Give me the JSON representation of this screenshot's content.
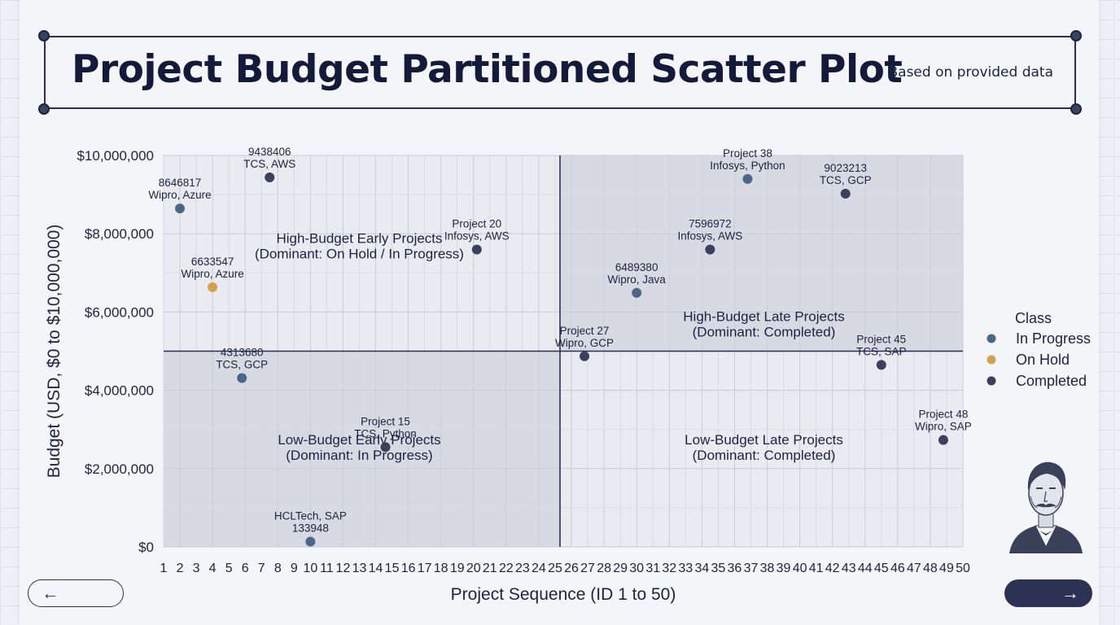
{
  "header": {
    "title": "Project Budget Partitioned Scatter Plot",
    "subtitle": "Based on provided data"
  },
  "chart_data": {
    "type": "scatter",
    "title": "Project Budget Partitioned Scatter Plot",
    "subtitle": "Based on provided data",
    "xlabel": "Project Sequence (ID 1 to 50)",
    "ylabel": "Budget (USD, $0 to $10,000,000)",
    "xlim": [
      1,
      50
    ],
    "ylim": [
      0,
      10000000
    ],
    "x_ticks": [
      "1",
      "2",
      "3",
      "4",
      "5",
      "6",
      "7",
      "8",
      "9",
      "10",
      "11",
      "12",
      "13",
      "14",
      "15",
      "16",
      "17",
      "18",
      "19",
      "20",
      "21",
      "22",
      "23",
      "24",
      "25",
      "26",
      "27",
      "28",
      "29",
      "30",
      "31",
      "32",
      "33",
      "34",
      "35",
      "36",
      "37",
      "38",
      "39",
      "40",
      "41",
      "42",
      "43",
      "44",
      "45",
      "46",
      "47",
      "48",
      "49",
      "50"
    ],
    "y_ticks": [
      {
        "value": 0,
        "label": "$0"
      },
      {
        "value": 2000000,
        "label": "$2,000,000"
      },
      {
        "value": 4000000,
        "label": "$4,000,000"
      },
      {
        "value": 6000000,
        "label": "$6,000,000"
      },
      {
        "value": 8000000,
        "label": "$8,000,000"
      },
      {
        "value": 10000000,
        "label": "$10,000,000"
      }
    ],
    "grid": true,
    "partition": {
      "x": 25.3,
      "y": 5000000
    },
    "legend": {
      "title": "Class",
      "position": "right",
      "entries": [
        {
          "name": "In Progress",
          "color": "#4a6688"
        },
        {
          "name": "On Hold",
          "color": "#d4a24c"
        },
        {
          "name": "Completed",
          "color": "#3b405c"
        }
      ]
    },
    "quadrants": [
      {
        "lines": [
          "High-Budget Early Projects",
          "(Dominant: On Hold / In Progress)"
        ],
        "x": 13,
        "y": 7770000
      },
      {
        "lines": [
          "High-Budget Late Projects",
          "(Dominant: Completed)"
        ],
        "x": 37.8,
        "y": 5770000
      },
      {
        "lines": [
          "Low-Budget Early Projects",
          "(Dominant: In Progress)"
        ],
        "x": 13,
        "y": 2620000
      },
      {
        "lines": [
          "Low-Budget Late Projects",
          "(Dominant: Completed)"
        ],
        "x": 37.8,
        "y": 2620000
      }
    ],
    "points": [
      {
        "x": 2,
        "y": 8646817,
        "class": "In Progress",
        "labels": [
          "8646817",
          "Wipro, Azure"
        ],
        "label_pos": "above"
      },
      {
        "x": 7.5,
        "y": 9438406,
        "class": "Completed",
        "labels": [
          "9438406",
          "TCS, AWS"
        ],
        "label_pos": "above"
      },
      {
        "x": 4,
        "y": 6633547,
        "class": "On Hold",
        "labels": [
          "6633547",
          "Wipro, Azure"
        ],
        "label_pos": "above"
      },
      {
        "x": 20.2,
        "y": 7596972,
        "class": "Completed",
        "labels": [
          "Project 20",
          "Infosys, AWS"
        ],
        "label_pos": "above"
      },
      {
        "x": 5.8,
        "y": 4313680,
        "class": "In Progress",
        "labels": [
          "4313680",
          "TCS, GCP"
        ],
        "label_pos": "above"
      },
      {
        "x": 14.6,
        "y": 2550000,
        "class": "Completed",
        "labels": [
          "Project 15",
          "TCS, Python"
        ],
        "label_pos": "above"
      },
      {
        "x": 10,
        "y": 133948,
        "class": "In Progress",
        "labels": [
          "HCLTech, SAP",
          "133948"
        ],
        "label_pos": "above"
      },
      {
        "x": 36.8,
        "y": 9400000,
        "class": "In Progress",
        "labels": [
          "Project 38",
          "Infosys, Python"
        ],
        "label_pos": "above"
      },
      {
        "x": 42.8,
        "y": 9023213,
        "class": "Completed",
        "labels": [
          "9023213",
          "TCS, GCP"
        ],
        "label_pos": "above"
      },
      {
        "x": 34.5,
        "y": 7596972,
        "class": "Completed",
        "labels": [
          "7596972",
          "Infosys, AWS"
        ],
        "label_pos": "above"
      },
      {
        "x": 30,
        "y": 6489380,
        "class": "In Progress",
        "labels": [
          "6489380",
          "Wipro, Java"
        ],
        "label_pos": "above"
      },
      {
        "x": 26.8,
        "y": 4870000,
        "class": "Completed",
        "labels": [
          "Project 27",
          "Wipro, GCP"
        ],
        "label_pos": "above"
      },
      {
        "x": 45,
        "y": 4650000,
        "class": "Completed",
        "labels": [
          "Project 45",
          "TCS, SAP"
        ],
        "label_pos": "above"
      },
      {
        "x": 48.8,
        "y": 2730000,
        "class": "Completed",
        "labels": [
          "Project 48",
          "Wipro, SAP"
        ],
        "label_pos": "above"
      }
    ]
  },
  "nav": {
    "prev_icon": "arrow-left-icon",
    "next_icon": "arrow-right-icon",
    "prev_glyph": "←",
    "next_glyph": "→"
  },
  "decor": {
    "portrait_icon": "portrait-illustration"
  }
}
